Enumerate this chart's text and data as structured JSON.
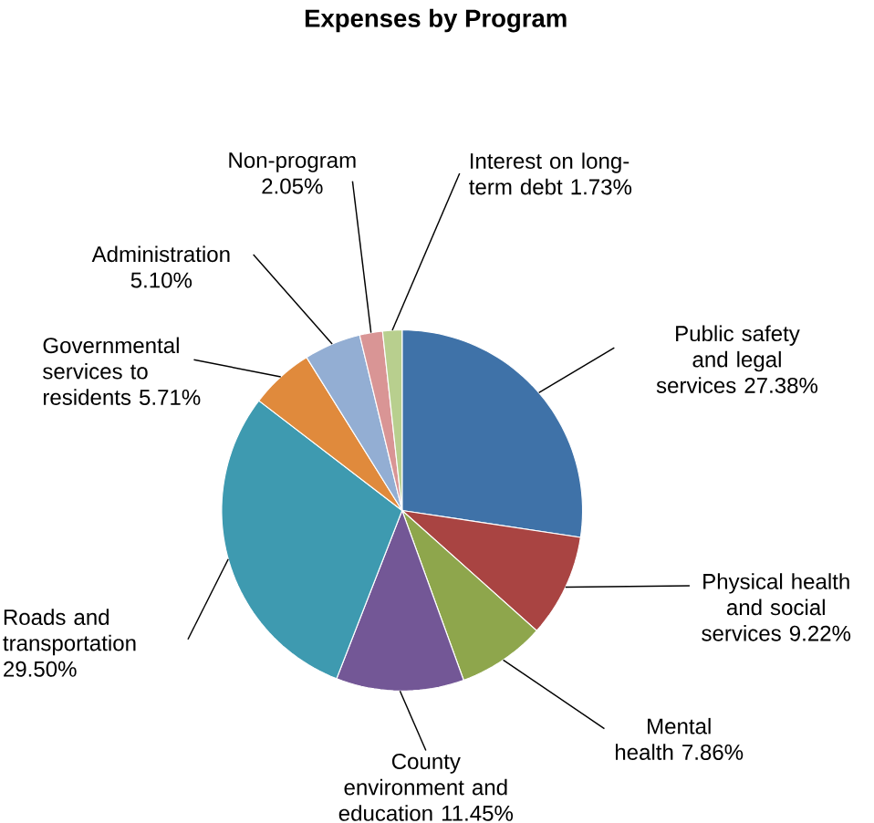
{
  "chart_data": {
    "type": "pie",
    "title": "Expenses by Program",
    "categories": [
      "Public safety and legal services",
      "Physical health and social services",
      "Mental health",
      "County environment and education",
      "Roads and transportation",
      "Governmental services to residents",
      "Administration",
      "Non-program",
      "Interest on long-term debt"
    ],
    "values": [
      27.38,
      9.22,
      7.86,
      11.45,
      29.5,
      5.71,
      5.1,
      2.05,
      1.73
    ],
    "value_labels": [
      "27.38%",
      "9.22%",
      "7.86%",
      "11.45%",
      "29.50%",
      "5.71%",
      "5.10%",
      "2.05%",
      "1.73%"
    ],
    "colors": [
      "#3f72a8",
      "#a94442",
      "#8ea64c",
      "#735796",
      "#3e9ab0",
      "#e08a3c",
      "#93aed3",
      "#d99595",
      "#b8cf8e"
    ]
  }
}
